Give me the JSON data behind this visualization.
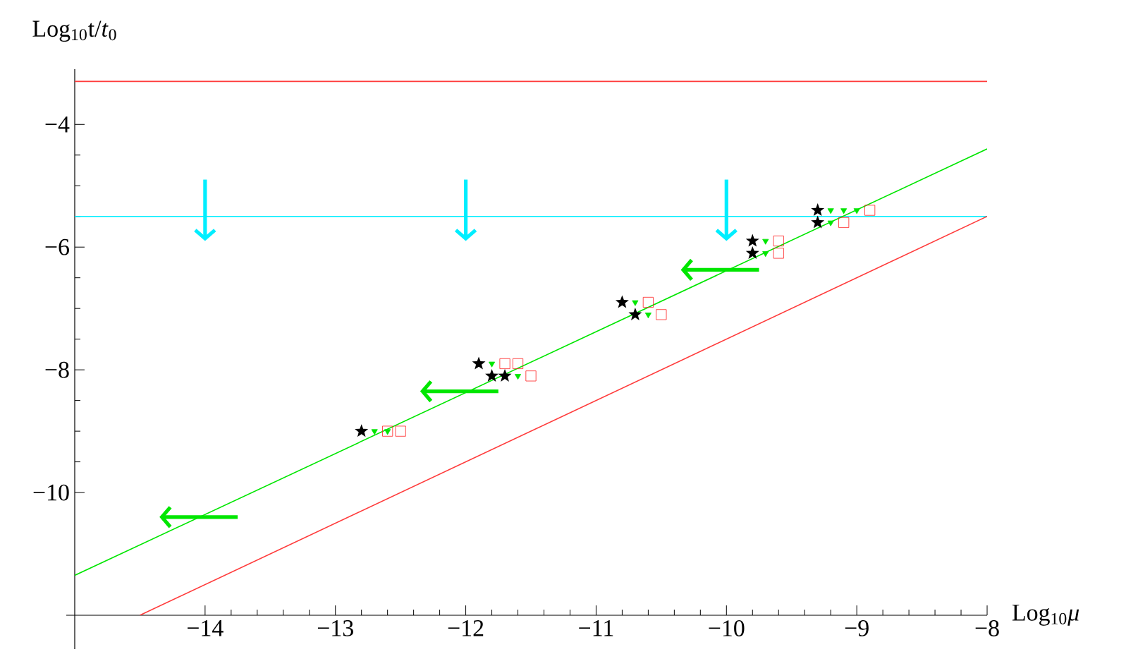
{
  "chart_data": {
    "type": "scatter",
    "xlabel": "Log$_{10}$*μ*",
    "ylabel": "Log$_{10}$t/*t*$_{0}$",
    "xlim": [
      -15,
      -8
    ],
    "ylim": [
      -12,
      -3.1
    ],
    "xticks": [
      {
        "value": -14,
        "label": "−14"
      },
      {
        "value": -13,
        "label": "−13"
      },
      {
        "value": -12,
        "label": "−12"
      },
      {
        "value": -11,
        "label": "−11"
      },
      {
        "value": -10,
        "label": "−10"
      },
      {
        "value": -9,
        "label": "−9"
      },
      {
        "value": -8,
        "label": "−8"
      }
    ],
    "yticks": [
      {
        "value": -10,
        "label": "−10"
      },
      {
        "value": -8,
        "label": "−8"
      },
      {
        "value": -6,
        "label": "−6"
      },
      {
        "value": -4,
        "label": "−4"
      }
    ],
    "series": [
      {
        "type": "line",
        "color": "#ff3b3b",
        "x": [
          -15,
          -8
        ],
        "values": [
          -3.3,
          -3.3
        ]
      },
      {
        "type": "line",
        "color": "#00eeff",
        "x": [
          -15,
          -8
        ],
        "values": [
          -5.5,
          -5.5
        ]
      },
      {
        "type": "line",
        "color": "#00e600",
        "x": [
          -15,
          -8
        ],
        "values": [
          -11.35,
          -4.4
        ]
      },
      {
        "type": "line",
        "color": "#ff3b3b",
        "x": [
          -14.5,
          -8
        ],
        "values": [
          -12,
          -5.5
        ]
      },
      {
        "marker": "triangle",
        "color": "#00e600",
        "x": [
          -12.7,
          -12.6,
          -11.8,
          -11.6,
          -10.7,
          -10.6,
          -9.7,
          -9.7,
          -9.2,
          -9.1,
          -9.0,
          -9.2
        ],
        "values": [
          -9.0,
          -9.0,
          -7.9,
          -8.1,
          -6.9,
          -7.1,
          -5.9,
          -6.1,
          -5.4,
          -5.4,
          -5.4,
          -5.6
        ]
      },
      {
        "marker": "star",
        "color": "#000000",
        "x": [
          -12.8,
          -11.9,
          -11.8,
          -11.7,
          -10.8,
          -10.7,
          -9.8,
          -9.8,
          -9.3,
          -9.3
        ],
        "values": [
          -9.0,
          -7.9,
          -8.1,
          -8.1,
          -6.9,
          -7.1,
          -5.9,
          -6.1,
          -5.4,
          -5.6
        ]
      },
      {
        "marker": "square",
        "color": "#ff2020",
        "x": [
          -12.6,
          -12.5,
          -11.7,
          -11.6,
          -11.5,
          -10.6,
          -10.5,
          -9.6,
          -9.6,
          -8.9,
          -9.1
        ],
        "values": [
          -9.0,
          -9.0,
          -7.9,
          -7.9,
          -8.1,
          -6.9,
          -7.1,
          -5.9,
          -6.1,
          -5.4,
          -5.6
        ]
      }
    ]
  }
}
